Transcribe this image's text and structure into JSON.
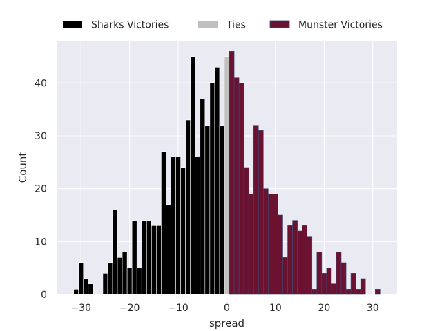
{
  "chart_data": {
    "type": "bar",
    "xlabel": "spread",
    "ylabel": "Count",
    "xlim": [
      -35,
      35
    ],
    "ylim": [
      0,
      48
    ],
    "grid": true,
    "legend_placement": "top",
    "x_ticks": [
      -30,
      -20,
      -10,
      0,
      10,
      20,
      30
    ],
    "x_tick_labels": [
      "−30",
      "−20",
      "−10",
      "0",
      "10",
      "20",
      "30"
    ],
    "y_ticks": [
      0,
      10,
      20,
      30,
      40
    ],
    "y_tick_labels": [
      "0",
      "10",
      "20",
      "30",
      "40"
    ],
    "colors": {
      "background": "#eaeaf2",
      "grid": "#ffffff",
      "sharks": "#000000",
      "ties": "#c0c0c0",
      "munster": "#6b1230",
      "munster_edge": "#3b4a7a"
    },
    "series": [
      {
        "name": "Sharks Victories",
        "key": "sharks",
        "x": [
          -31,
          -30,
          -29,
          -28,
          -27,
          -26,
          -25,
          -24,
          -23,
          -22,
          -21,
          -20,
          -19,
          -18,
          -17,
          -16,
          -15,
          -14,
          -13,
          -12,
          -11,
          -10,
          -9,
          -8,
          -7,
          -6,
          -5,
          -4,
          -3,
          -2,
          -1
        ],
        "values": [
          1,
          6,
          3,
          2,
          0,
          0,
          4,
          6,
          16,
          7,
          8,
          5,
          14,
          5,
          14,
          14,
          13,
          13,
          27,
          17,
          26,
          26,
          24,
          33,
          45,
          26,
          37,
          32,
          40,
          43,
          32
        ]
      },
      {
        "name": "Ties",
        "key": "ties",
        "x": [
          0
        ],
        "values": [
          45
        ]
      },
      {
        "name": "Munster Victories",
        "key": "munster",
        "x": [
          1,
          2,
          3,
          4,
          5,
          6,
          7,
          8,
          9,
          10,
          11,
          12,
          13,
          14,
          15,
          16,
          17,
          18,
          19,
          20,
          21,
          22,
          23,
          24,
          25,
          26,
          27,
          28,
          29,
          30,
          31
        ],
        "values": [
          46,
          41,
          40,
          24,
          19,
          32,
          31,
          20,
          19,
          19,
          15,
          7,
          13,
          14,
          12,
          13,
          11,
          1,
          8,
          4,
          5,
          2,
          8,
          6,
          1,
          4,
          1,
          3,
          0,
          0,
          1
        ]
      }
    ]
  }
}
